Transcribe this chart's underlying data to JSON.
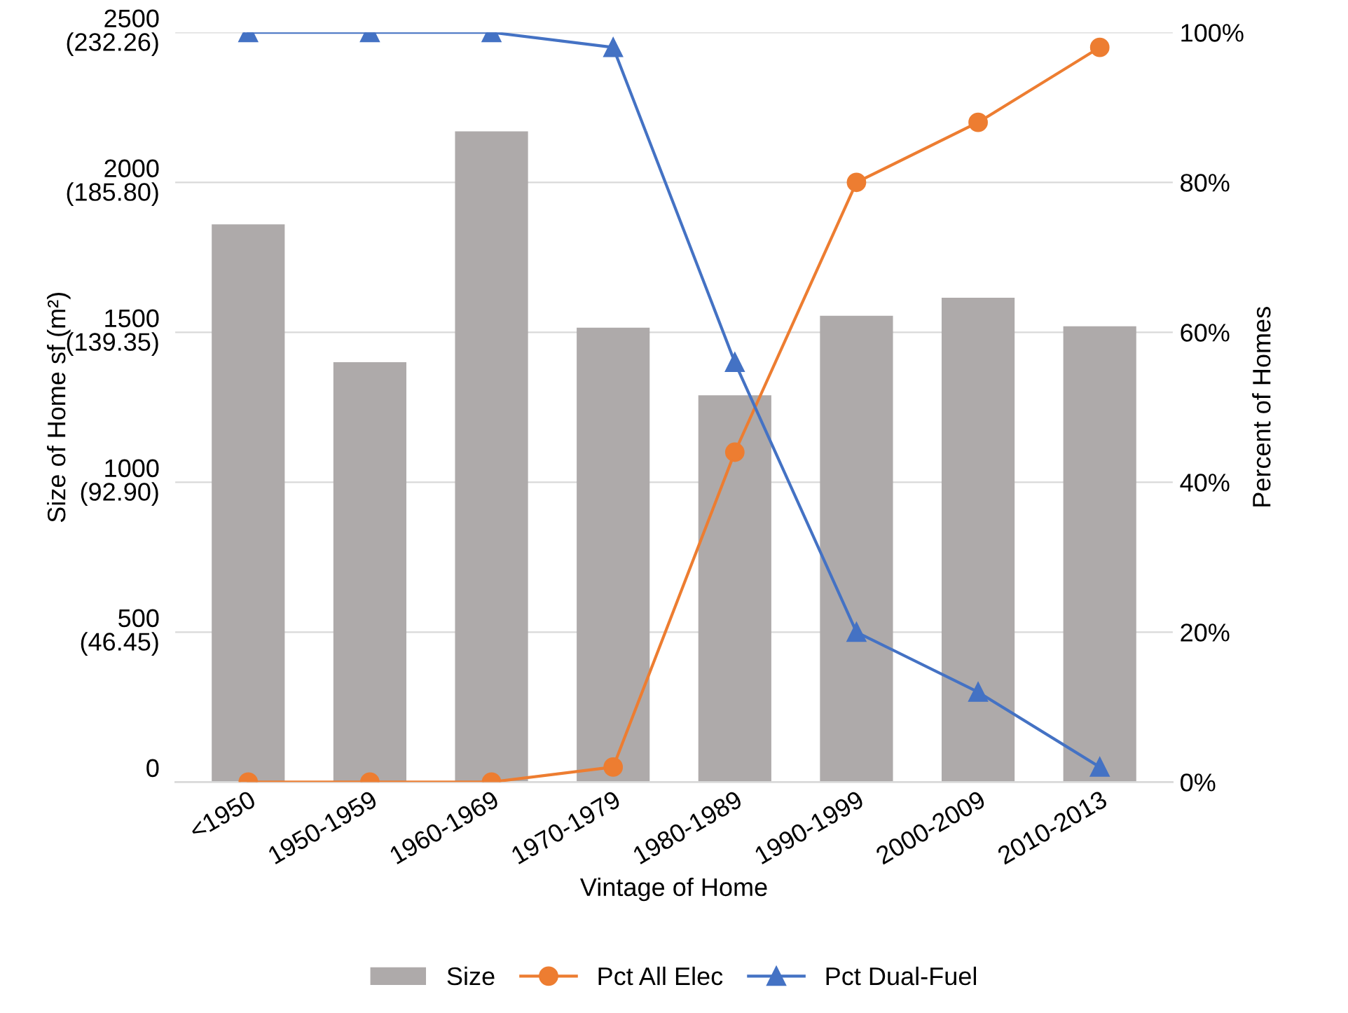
{
  "chart_data": {
    "type": "bar",
    "xlabel": "Vintage of Home",
    "ylabel": "Size of Home sf (m²)",
    "y2label": "Percent of Homes",
    "categories": [
      "<1950",
      "1950-1959",
      "1960-1969",
      "1970-1979",
      "1980-1989",
      "1990-1999",
      "2000-2009",
      "2010-2013"
    ],
    "series": [
      {
        "name": "Size",
        "color": "#aeaaaa",
        "values": [
          1860,
          1400,
          2170,
          1515,
          1290,
          1555,
          1615,
          1520
        ]
      },
      {
        "name": "Pct All Elec",
        "type": "line",
        "axis": "y2",
        "marker": "circle",
        "color": "#ed7d31",
        "values": [
          0,
          0,
          0,
          2,
          44,
          80,
          88,
          98
        ]
      },
      {
        "name": "Pct Dual-Fuel",
        "type": "line",
        "axis": "y2",
        "marker": "triangle",
        "color": "#4472c4",
        "values": [
          100,
          100,
          100,
          98,
          56,
          20,
          12,
          2
        ]
      }
    ],
    "ylim": [
      0,
      2500
    ],
    "yticks": [
      0,
      500,
      1000,
      1500,
      2000,
      2500
    ],
    "y3lim": [
      0,
      232.26
    ],
    "y3ticks": [
      {
        "value": 46.45,
        "label": "(46.45)"
      },
      {
        "value": 92.9,
        "label": "(92.90)"
      },
      {
        "value": 139.35,
        "label": "(139.35)"
      },
      {
        "value": 185.8,
        "label": "(185.80)"
      },
      {
        "value": 232.26,
        "label": "(232.26)"
      }
    ],
    "y2lim": [
      0,
      100
    ],
    "y2ticks": [
      {
        "value": 0,
        "label": "0%"
      },
      {
        "value": 20,
        "label": "20%"
      },
      {
        "value": 40,
        "label": "40%"
      },
      {
        "value": 60,
        "label": "60%"
      },
      {
        "value": 80,
        "label": "80%"
      },
      {
        "value": 100,
        "label": "100%"
      }
    ],
    "grid": "y",
    "legend": "bottom"
  }
}
